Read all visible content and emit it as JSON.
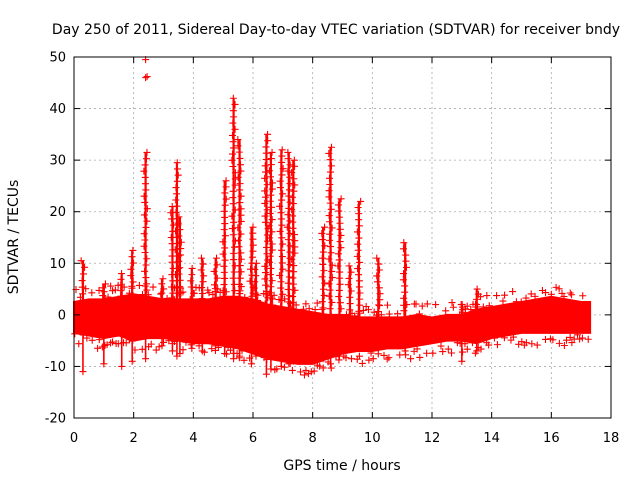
{
  "chart_data": {
    "type": "scatter",
    "title": "Day 250 of 2011, Sidereal Day-to-day VTEC variation (SDTVAR) for receiver bndy",
    "xlabel": "GPS time / hours",
    "ylabel": "SDTVAR / TECUs",
    "xlim": [
      0,
      18
    ],
    "ylim": [
      -20,
      50
    ],
    "xticks": [
      "0",
      "2",
      "4",
      "6",
      "8",
      "10",
      "12",
      "14",
      "16",
      "18"
    ],
    "yticks": [
      "50",
      "40",
      "30",
      "20",
      "10",
      "0",
      "-10",
      "-20"
    ],
    "grid": true,
    "marker": "+",
    "series_color": "#ff0000",
    "band": {
      "description_points": [
        [
          0.0,
          2.5,
          -3.5
        ],
        [
          0.5,
          3.0,
          -4.0
        ],
        [
          1.0,
          3.0,
          -4.5
        ],
        [
          1.5,
          3.5,
          -4.0
        ],
        [
          2.0,
          4.0,
          -5.0
        ],
        [
          2.5,
          3.5,
          -4.5
        ],
        [
          3.0,
          3.0,
          -4.5
        ],
        [
          3.5,
          3.0,
          -5.0
        ],
        [
          4.0,
          3.0,
          -5.5
        ],
        [
          4.5,
          3.0,
          -5.5
        ],
        [
          5.0,
          3.5,
          -6.0
        ],
        [
          5.5,
          3.5,
          -6.5
        ],
        [
          6.0,
          3.0,
          -7.5
        ],
        [
          6.5,
          2.0,
          -8.5
        ],
        [
          7.0,
          1.5,
          -9.0
        ],
        [
          7.5,
          1.0,
          -9.5
        ],
        [
          8.0,
          0.5,
          -9.5
        ],
        [
          8.5,
          0.0,
          -8.5
        ],
        [
          9.0,
          0.0,
          -7.5
        ],
        [
          9.5,
          -0.5,
          -7.0
        ],
        [
          10.0,
          -0.5,
          -7.0
        ],
        [
          10.5,
          -0.5,
          -6.5
        ],
        [
          11.0,
          -0.5,
          -6.5
        ],
        [
          11.5,
          0.0,
          -6.0
        ],
        [
          12.0,
          -0.5,
          -5.5
        ],
        [
          12.5,
          0.0,
          -5.0
        ],
        [
          13.0,
          0.0,
          -5.0
        ],
        [
          13.5,
          1.0,
          -5.5
        ],
        [
          14.0,
          1.5,
          -4.5
        ],
        [
          14.5,
          2.0,
          -4.0
        ],
        [
          15.0,
          2.5,
          -3.5
        ],
        [
          15.5,
          3.0,
          -3.5
        ],
        [
          16.0,
          3.5,
          -3.5
        ],
        [
          16.5,
          3.0,
          -3.5
        ],
        [
          17.0,
          2.5,
          -3.5
        ],
        [
          17.3,
          2.5,
          -3.5
        ]
      ]
    },
    "spikes": [
      {
        "x": 0.3,
        "top": 10.5,
        "bottom": -11.0
      },
      {
        "x": 1.0,
        "top": 6.0,
        "bottom": -9.5
      },
      {
        "x": 1.6,
        "top": 8.0,
        "bottom": -10.0
      },
      {
        "x": 1.95,
        "top": 12.5,
        "bottom": -9.0
      },
      {
        "x": 2.4,
        "top": 31.5,
        "bottom": -8.5
      },
      {
        "x": 2.95,
        "top": 7.0,
        "bottom": -6.0
      },
      {
        "x": 3.3,
        "top": 21.0,
        "bottom": -7.0
      },
      {
        "x": 3.45,
        "top": 29.5,
        "bottom": -8.0
      },
      {
        "x": 3.55,
        "top": 19.0,
        "bottom": -7.5
      },
      {
        "x": 3.95,
        "top": 9.0,
        "bottom": -6.5
      },
      {
        "x": 4.3,
        "top": 11.0,
        "bottom": -7.0
      },
      {
        "x": 4.75,
        "top": 11.0,
        "bottom": -6.0
      },
      {
        "x": 5.05,
        "top": 26.0,
        "bottom": -7.5
      },
      {
        "x": 5.35,
        "top": 42.0,
        "bottom": -8.5
      },
      {
        "x": 5.55,
        "top": 34.0,
        "bottom": -8.0
      },
      {
        "x": 5.95,
        "top": 17.0,
        "bottom": -9.5
      },
      {
        "x": 6.1,
        "top": 10.0,
        "bottom": -8.0
      },
      {
        "x": 6.45,
        "top": 35.0,
        "bottom": -11.5
      },
      {
        "x": 6.6,
        "top": 31.5,
        "bottom": -10.5
      },
      {
        "x": 6.95,
        "top": 32.0,
        "bottom": -10.0
      },
      {
        "x": 7.2,
        "top": 31.5,
        "bottom": -9.5
      },
      {
        "x": 7.35,
        "top": 30.0,
        "bottom": -9.0
      },
      {
        "x": 8.35,
        "top": 17.0,
        "bottom": -8.5
      },
      {
        "x": 8.6,
        "top": 32.5,
        "bottom": -9.5
      },
      {
        "x": 8.9,
        "top": 22.5,
        "bottom": -8.0
      },
      {
        "x": 9.25,
        "top": 9.5,
        "bottom": -6.0
      },
      {
        "x": 9.55,
        "top": 22.0,
        "bottom": -6.5
      },
      {
        "x": 10.2,
        "top": 11.0,
        "bottom": -6.5
      },
      {
        "x": 11.1,
        "top": 14.0,
        "bottom": -7.0
      },
      {
        "x": 13.0,
        "top": 2.0,
        "bottom": -9.0
      },
      {
        "x": 13.5,
        "top": 5.0,
        "bottom": -7.0
      }
    ],
    "outliers": [
      {
        "x": 2.4,
        "y": 49.5
      },
      {
        "x": 2.4,
        "y": 46.0
      },
      {
        "x": 2.45,
        "y": 46.2
      }
    ]
  }
}
